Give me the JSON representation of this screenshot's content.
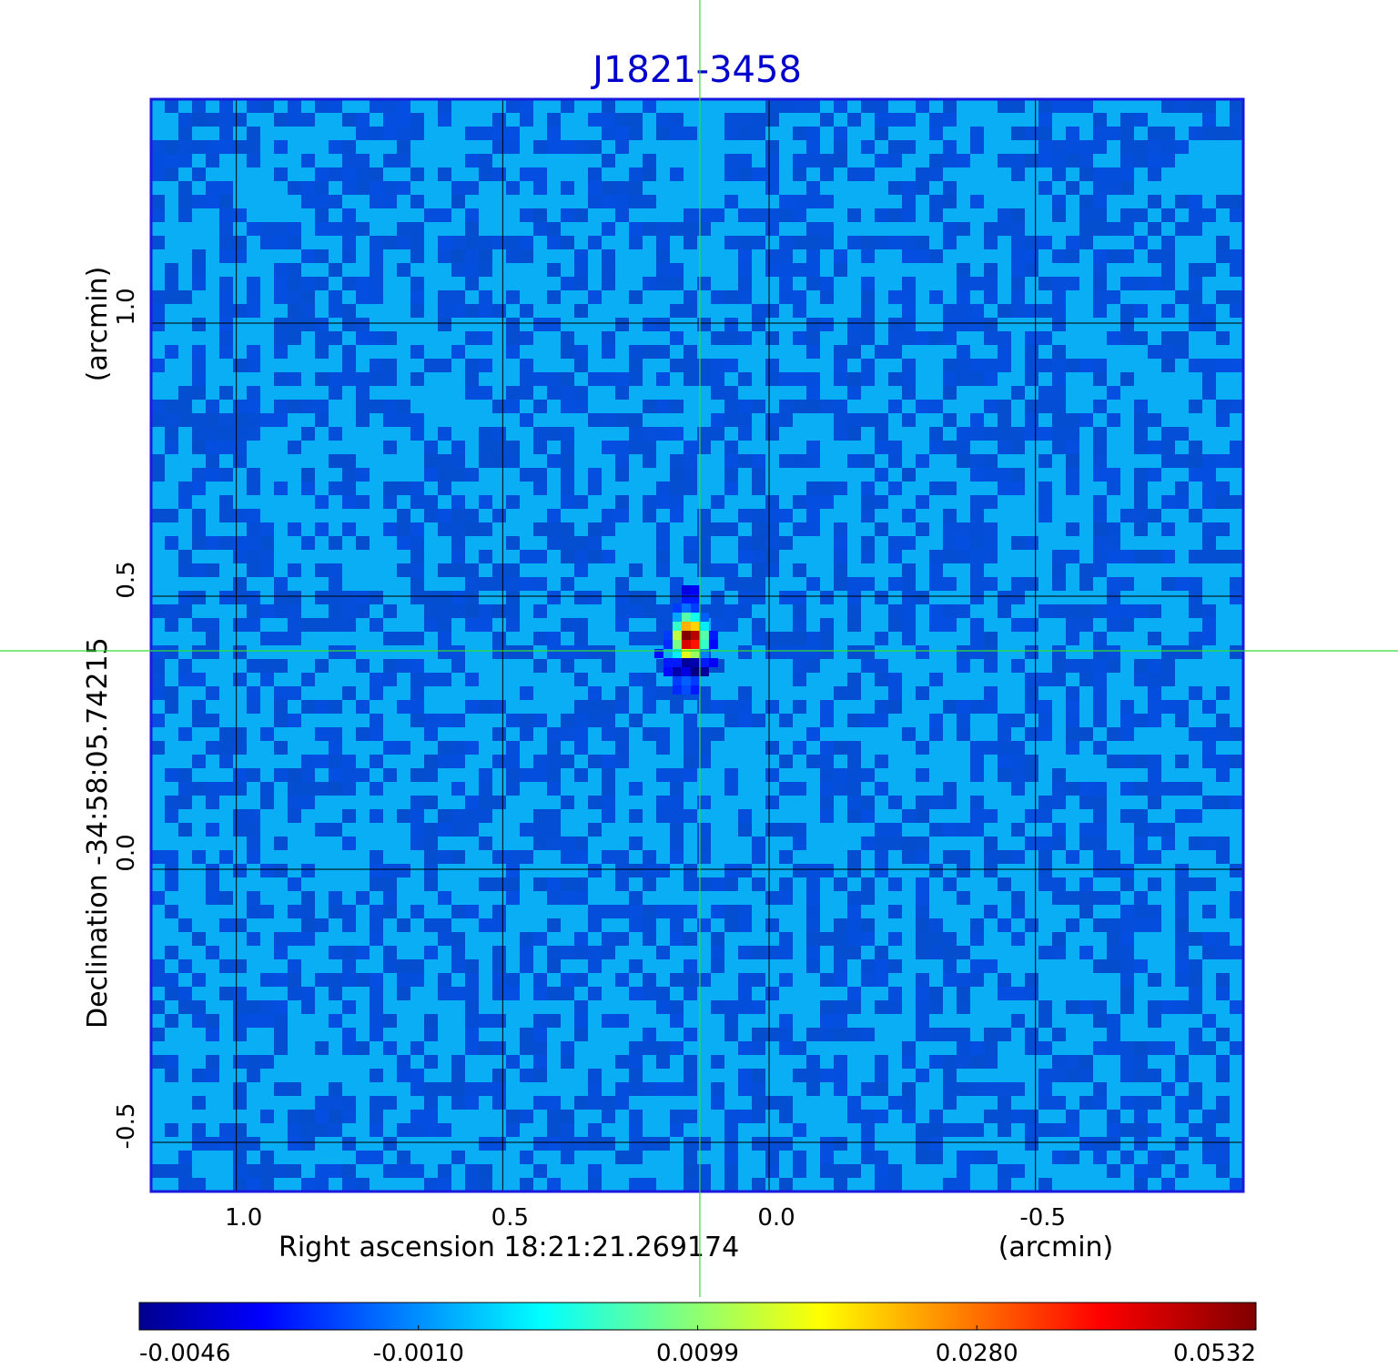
{
  "chart_data": {
    "type": "heatmap",
    "title": "J1821-3458",
    "xlabel": "Right ascension  18:21:21.269174",
    "xunit": "(arcmin)",
    "ylabel": "Declination  -34:58:05.74215",
    "yunit": "(arcmin)",
    "xlim": [
      1.16,
      -0.89
    ],
    "ylim": [
      -0.59,
      1.41
    ],
    "grid": true,
    "x_ticks": [
      1.0,
      0.5,
      0.0,
      -0.5
    ],
    "x_tick_labels": [
      "1.0",
      "0.5",
      "0.0",
      "-0.5"
    ],
    "y_ticks": [
      1.0,
      0.5,
      0.0,
      -0.5
    ],
    "y_tick_labels": [
      "1.0",
      "0.5",
      "0.0",
      "-0.5"
    ],
    "crosshair": {
      "x": 0.13,
      "y": 0.4
    },
    "source": {
      "x": 0.13,
      "y": 0.42,
      "peak": 0.0532
    },
    "colorbar": {
      "min": -0.0046,
      "max": 0.0532,
      "tick_labels": [
        "-0.0046",
        "-0.0010",
        "0.0099",
        "0.0280",
        "0.0532"
      ],
      "colormap": "jet"
    },
    "background_level": -0.001
  },
  "colors": {
    "title": "#0000cc",
    "frame": "#1a1adf",
    "grid": "#000000",
    "crosshair": "#33dd33",
    "background": "#0aaef5"
  }
}
